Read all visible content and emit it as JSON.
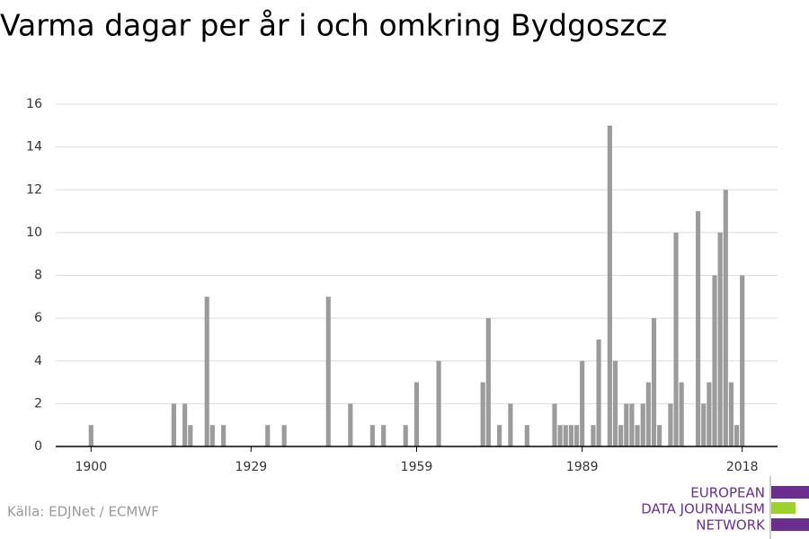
{
  "chart_data": {
    "type": "bar",
    "title": "Varma dagar per år i och omkring Bydgoszcz",
    "source": "Källa: EDJNet / ECMWF",
    "logo": [
      "EUROPEAN",
      "DATA JOURNALISM",
      "NETWORK"
    ],
    "x": [
      1900,
      1915,
      1917,
      1918,
      1921,
      1922,
      1924,
      1932,
      1935,
      1943,
      1947,
      1951,
      1953,
      1957,
      1959,
      1963,
      1971,
      1972,
      1974,
      1976,
      1979,
      1984,
      1985,
      1986,
      1987,
      1988,
      1989,
      1991,
      1992,
      1994,
      1995,
      1996,
      1997,
      1998,
      1999,
      2000,
      2001,
      2002,
      2003,
      2005,
      2006,
      2007,
      2010,
      2011,
      2012,
      2013,
      2014,
      2015,
      2016,
      2017,
      2018
    ],
    "values": [
      1,
      2,
      2,
      1,
      7,
      1,
      1,
      1,
      1,
      7,
      2,
      1,
      1,
      1,
      3,
      4,
      3,
      6,
      1,
      2,
      1,
      2,
      1,
      1,
      1,
      1,
      4,
      1,
      5,
      15,
      4,
      1,
      2,
      2,
      1,
      2,
      3,
      6,
      1,
      2,
      10,
      3,
      11,
      2,
      3,
      8,
      10,
      12,
      3,
      1,
      8
    ],
    "color": "#9b9b9b",
    "xlim": [
      1893.6,
      2024.4
    ],
    "xticks": [
      1900,
      1929,
      1959,
      1989,
      2018
    ],
    "ylim": [
      0,
      16
    ],
    "yticks": [
      0,
      2,
      4,
      6,
      8,
      10,
      12,
      14,
      16
    ],
    "grid": true
  }
}
